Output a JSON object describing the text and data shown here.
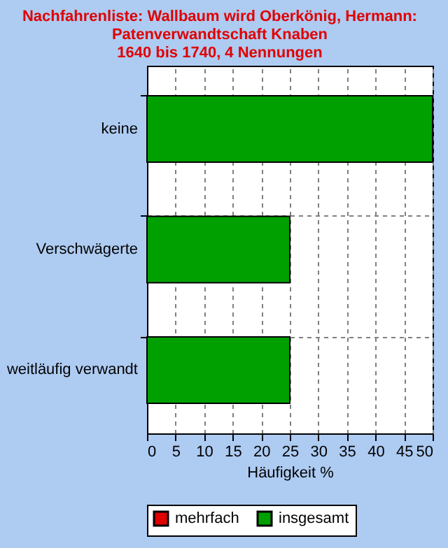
{
  "chart_data": {
    "type": "bar",
    "orientation": "horizontal",
    "title": "Nachfahrenliste: Wallbaum wird Oberkönig, Hermann:\nPatenverwandtschaft Knaben\n1640 bis 1740, 4 Nennungen",
    "xlabel": "Häufigkeit %",
    "categories": [
      "keine",
      "Verschwägerte",
      "weitläufig verwandt"
    ],
    "series": [
      {
        "name": "mehrfach",
        "color": "#e00000",
        "values": [
          null,
          null,
          null
        ]
      },
      {
        "name": "insgesamt",
        "color": "#00a000",
        "values": [
          50,
          25,
          25
        ]
      }
    ],
    "xlim": [
      0,
      50
    ],
    "xticks": [
      0,
      5,
      10,
      15,
      20,
      25,
      30,
      35,
      40,
      45,
      50
    ],
    "grid": true,
    "legend": "bottom"
  }
}
